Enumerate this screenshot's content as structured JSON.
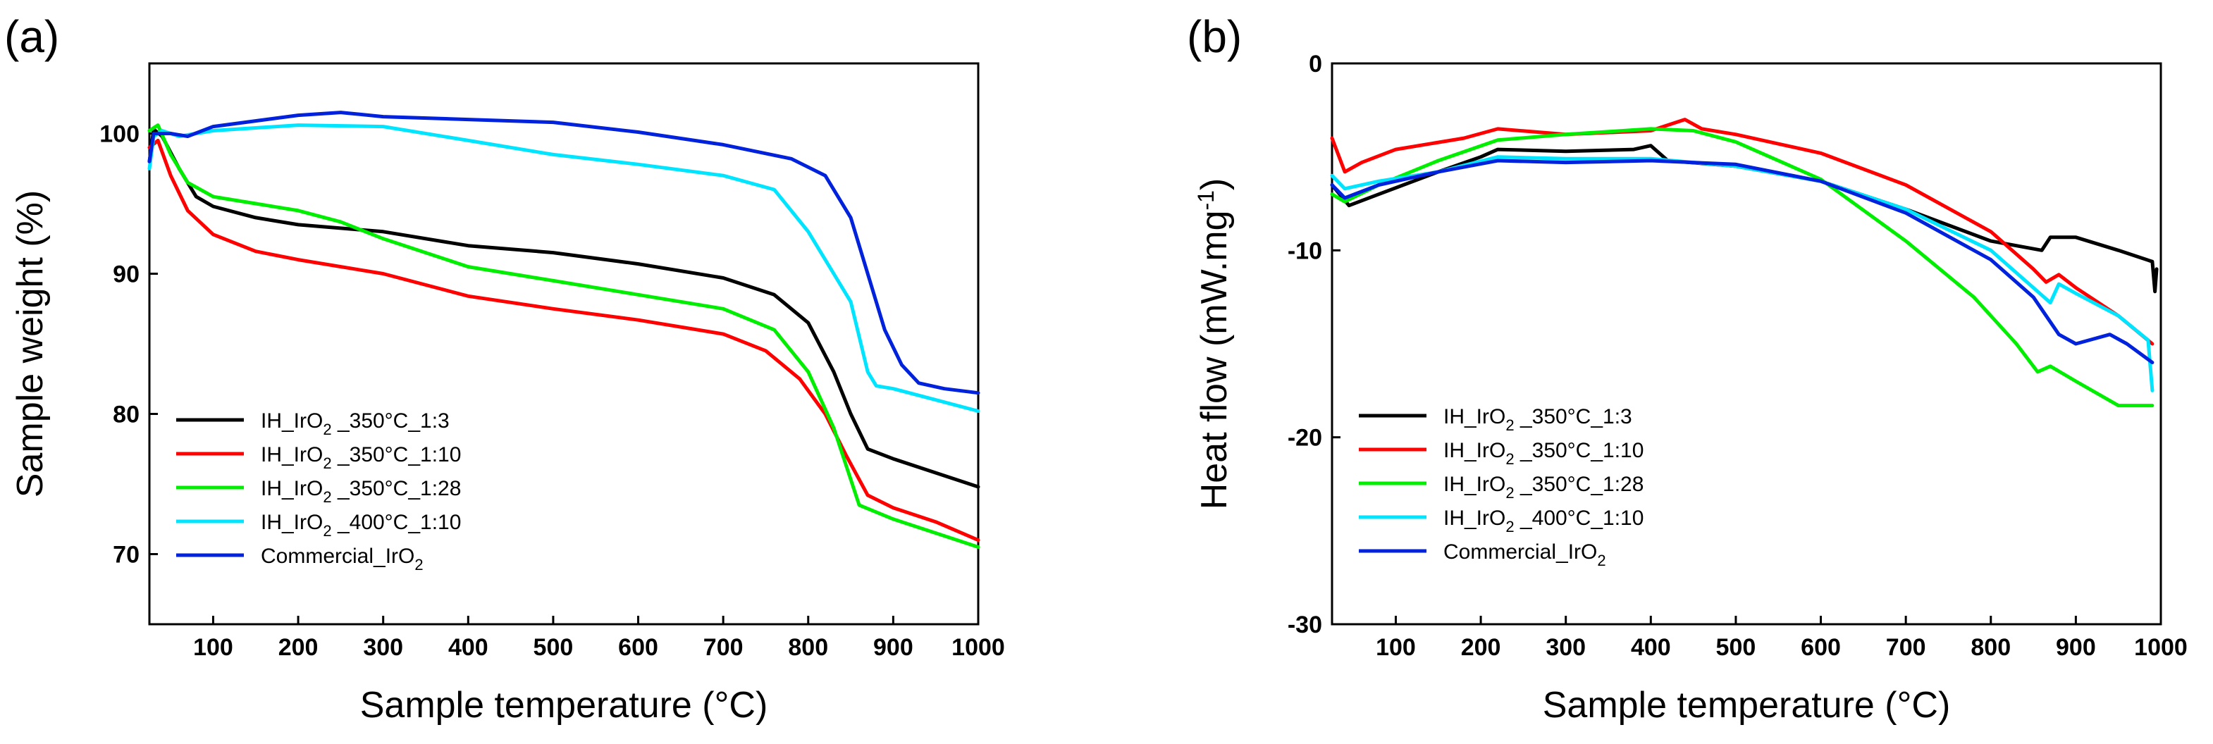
{
  "chart_data": [
    {
      "type": "line",
      "panel_label": "(a)",
      "title": "",
      "xlabel": "Sample temperature",
      "xlabel_unit": "(°C)",
      "ylabel": "Sample weight (%)",
      "xlim": [
        25,
        1000
      ],
      "ylim": [
        65,
        105
      ],
      "xticks": [
        100,
        200,
        300,
        400,
        500,
        600,
        700,
        800,
        900,
        1000
      ],
      "yticks": [
        70,
        80,
        90,
        100
      ],
      "grid": false,
      "legend_position": "bottom-left",
      "series": [
        {
          "name": "IH_IrO2_350°C_1:3",
          "label_main": "IH_IrO",
          "label_sub": "2",
          "label_rest": " _350°C_1:3",
          "color": "#000000",
          "points": [
            [
              25,
              98
            ],
            [
              30,
              100.3
            ],
            [
              40,
              99.8
            ],
            [
              60,
              97.5
            ],
            [
              80,
              95.5
            ],
            [
              100,
              94.8
            ],
            [
              150,
              94
            ],
            [
              200,
              93.5
            ],
            [
              300,
              93
            ],
            [
              400,
              92
            ],
            [
              500,
              91.5
            ],
            [
              600,
              90.7
            ],
            [
              700,
              89.7
            ],
            [
              760,
              88.5
            ],
            [
              800,
              86.5
            ],
            [
              830,
              83
            ],
            [
              850,
              80
            ],
            [
              870,
              77.5
            ],
            [
              900,
              76.8
            ],
            [
              950,
              75.8
            ],
            [
              1000,
              74.8
            ]
          ]
        },
        {
          "name": "IH_IrO2_350°C_1:10",
          "label_main": "IH_IrO",
          "label_sub": "2",
          "label_rest": " _350°C_1:10",
          "color": "#ff0000",
          "points": [
            [
              25,
              99
            ],
            [
              35,
              99.5
            ],
            [
              50,
              97
            ],
            [
              70,
              94.5
            ],
            [
              100,
              92.8
            ],
            [
              150,
              91.6
            ],
            [
              200,
              91
            ],
            [
              300,
              90
            ],
            [
              400,
              88.4
            ],
            [
              500,
              87.5
            ],
            [
              600,
              86.7
            ],
            [
              700,
              85.7
            ],
            [
              750,
              84.5
            ],
            [
              790,
              82.5
            ],
            [
              820,
              80
            ],
            [
              845,
              77
            ],
            [
              870,
              74.2
            ],
            [
              900,
              73.3
            ],
            [
              950,
              72.3
            ],
            [
              1000,
              71
            ]
          ]
        },
        {
          "name": "IH_IrO2_350°C_1:28",
          "label_main": "IH_IrO",
          "label_sub": "2",
          "label_rest": " _350°C_1:28",
          "color": "#00ee00",
          "points": [
            [
              25,
              100.2
            ],
            [
              35,
              100.6
            ],
            [
              50,
              98.5
            ],
            [
              70,
              96.5
            ],
            [
              100,
              95.5
            ],
            [
              150,
              95
            ],
            [
              200,
              94.5
            ],
            [
              250,
              93.7
            ],
            [
              300,
              92.5
            ],
            [
              400,
              90.5
            ],
            [
              500,
              89.5
            ],
            [
              600,
              88.5
            ],
            [
              700,
              87.5
            ],
            [
              760,
              86
            ],
            [
              800,
              83
            ],
            [
              830,
              79
            ],
            [
              860,
              73.5
            ],
            [
              900,
              72.5
            ],
            [
              950,
              71.5
            ],
            [
              1000,
              70.5
            ]
          ]
        },
        {
          "name": "IH_IrO2_400°C_1:10",
          "label_main": "IH_IrO",
          "label_sub": "2",
          "label_rest": " _400°C_1:10",
          "color": "#00e5ff",
          "points": [
            [
              25,
              97.5
            ],
            [
              30,
              99.8
            ],
            [
              40,
              100.2
            ],
            [
              60,
              99.8
            ],
            [
              100,
              100.2
            ],
            [
              150,
              100.4
            ],
            [
              200,
              100.6
            ],
            [
              300,
              100.5
            ],
            [
              400,
              99.5
            ],
            [
              500,
              98.5
            ],
            [
              600,
              97.8
            ],
            [
              700,
              97
            ],
            [
              760,
              96
            ],
            [
              800,
              93
            ],
            [
              830,
              90
            ],
            [
              850,
              88
            ],
            [
              870,
              83
            ],
            [
              880,
              82
            ],
            [
              900,
              81.8
            ],
            [
              950,
              81
            ],
            [
              1000,
              80.2
            ]
          ]
        },
        {
          "name": "Commercial_IrO2",
          "label_main": "Commercial_IrO",
          "label_sub": "2",
          "label_rest": "",
          "color": "#0022dd",
          "points": [
            [
              25,
              98
            ],
            [
              30,
              100
            ],
            [
              50,
              100
            ],
            [
              70,
              99.8
            ],
            [
              100,
              100.5
            ],
            [
              200,
              101.3
            ],
            [
              250,
              101.5
            ],
            [
              300,
              101.2
            ],
            [
              400,
              101
            ],
            [
              500,
              100.8
            ],
            [
              600,
              100.1
            ],
            [
              700,
              99.2
            ],
            [
              780,
              98.2
            ],
            [
              820,
              97
            ],
            [
              850,
              94
            ],
            [
              870,
              90
            ],
            [
              890,
              86
            ],
            [
              910,
              83.5
            ],
            [
              930,
              82.2
            ],
            [
              960,
              81.8
            ],
            [
              1000,
              81.5
            ]
          ]
        }
      ]
    },
    {
      "type": "line",
      "panel_label": "(b)",
      "title": "",
      "xlabel": "Sample temperature",
      "xlabel_unit": "(°C)",
      "ylabel": "Heat flow (mW.mg",
      "ylabel_sup": "-1",
      "ylabel_end": ")",
      "xlim": [
        25,
        1000
      ],
      "ylim": [
        -30,
        0
      ],
      "xticks": [
        100,
        200,
        300,
        400,
        500,
        600,
        700,
        800,
        900,
        1000
      ],
      "yticks": [
        0,
        -10,
        -20,
        -30
      ],
      "grid": false,
      "legend_position": "bottom-left",
      "series": [
        {
          "name": "IH_IrO2_350°C_1:3",
          "label_main": "IH_IrO",
          "label_sub": "2",
          "label_rest": " _350°C_1:3",
          "color": "#000000",
          "points": [
            [
              25,
              -6.5
            ],
            [
              45,
              -7.6
            ],
            [
              80,
              -7
            ],
            [
              150,
              -5.8
            ],
            [
              200,
              -5
            ],
            [
              220,
              -4.6
            ],
            [
              300,
              -4.7
            ],
            [
              380,
              -4.6
            ],
            [
              400,
              -4.4
            ],
            [
              420,
              -5.2
            ],
            [
              500,
              -5.5
            ],
            [
              600,
              -6.3
            ],
            [
              700,
              -7.8
            ],
            [
              800,
              -9.5
            ],
            [
              860,
              -10
            ],
            [
              870,
              -9.3
            ],
            [
              900,
              -9.3
            ],
            [
              950,
              -10
            ],
            [
              990,
              -10.6
            ],
            [
              993,
              -12.2
            ],
            [
              995,
              -11
            ]
          ]
        },
        {
          "name": "IH_IrO2_350°C_1:10",
          "label_main": "IH_IrO",
          "label_sub": "2",
          "label_rest": " _350°C_1:10",
          "color": "#ff0000",
          "points": [
            [
              25,
              -4
            ],
            [
              40,
              -5.8
            ],
            [
              60,
              -5.3
            ],
            [
              100,
              -4.6
            ],
            [
              180,
              -4
            ],
            [
              220,
              -3.5
            ],
            [
              300,
              -3.8
            ],
            [
              400,
              -3.6
            ],
            [
              440,
              -3
            ],
            [
              460,
              -3.5
            ],
            [
              500,
              -3.8
            ],
            [
              600,
              -4.8
            ],
            [
              700,
              -6.5
            ],
            [
              800,
              -9
            ],
            [
              850,
              -11
            ],
            [
              865,
              -11.7
            ],
            [
              880,
              -11.3
            ],
            [
              900,
              -12
            ],
            [
              950,
              -13.5
            ],
            [
              990,
              -15
            ]
          ]
        },
        {
          "name": "IH_IrO2_350°C_1:28",
          "label_main": "IH_IrO",
          "label_sub": "2",
          "label_rest": " _350°C_1:28",
          "color": "#00ee00",
          "points": [
            [
              25,
              -7
            ],
            [
              40,
              -7.4
            ],
            [
              80,
              -6.5
            ],
            [
              150,
              -5.2
            ],
            [
              220,
              -4.1
            ],
            [
              300,
              -3.8
            ],
            [
              400,
              -3.5
            ],
            [
              450,
              -3.6
            ],
            [
              500,
              -4.2
            ],
            [
              600,
              -6.2
            ],
            [
              700,
              -9.5
            ],
            [
              780,
              -12.5
            ],
            [
              830,
              -15
            ],
            [
              855,
              -16.5
            ],
            [
              870,
              -16.2
            ],
            [
              900,
              -17
            ],
            [
              950,
              -18.3
            ],
            [
              990,
              -18.3
            ]
          ]
        },
        {
          "name": "IH_IrO2_400°C_1:10",
          "label_main": "IH_IrO",
          "label_sub": "2",
          "label_rest": " _400°C_1:10",
          "color": "#00e5ff",
          "points": [
            [
              25,
              -6
            ],
            [
              40,
              -6.7
            ],
            [
              80,
              -6.3
            ],
            [
              150,
              -5.8
            ],
            [
              220,
              -5
            ],
            [
              300,
              -5.1
            ],
            [
              400,
              -5.1
            ],
            [
              500,
              -5.5
            ],
            [
              600,
              -6.3
            ],
            [
              700,
              -7.8
            ],
            [
              800,
              -10
            ],
            [
              850,
              -12
            ],
            [
              870,
              -12.8
            ],
            [
              880,
              -11.8
            ],
            [
              900,
              -12.3
            ],
            [
              950,
              -13.5
            ],
            [
              985,
              -14.8
            ],
            [
              990,
              -17.5
            ]
          ]
        },
        {
          "name": "Commercial_IrO2",
          "label_main": "Commercial_IrO",
          "label_sub": "2",
          "label_rest": "",
          "color": "#0022dd",
          "points": [
            [
              25,
              -6.5
            ],
            [
              40,
              -7.2
            ],
            [
              80,
              -6.5
            ],
            [
              150,
              -5.8
            ],
            [
              220,
              -5.2
            ],
            [
              300,
              -5.3
            ],
            [
              400,
              -5.2
            ],
            [
              500,
              -5.4
            ],
            [
              600,
              -6.3
            ],
            [
              700,
              -8
            ],
            [
              800,
              -10.5
            ],
            [
              850,
              -12.5
            ],
            [
              880,
              -14.5
            ],
            [
              900,
              -15
            ],
            [
              940,
              -14.5
            ],
            [
              960,
              -15
            ],
            [
              990,
              -16
            ]
          ]
        }
      ]
    }
  ]
}
